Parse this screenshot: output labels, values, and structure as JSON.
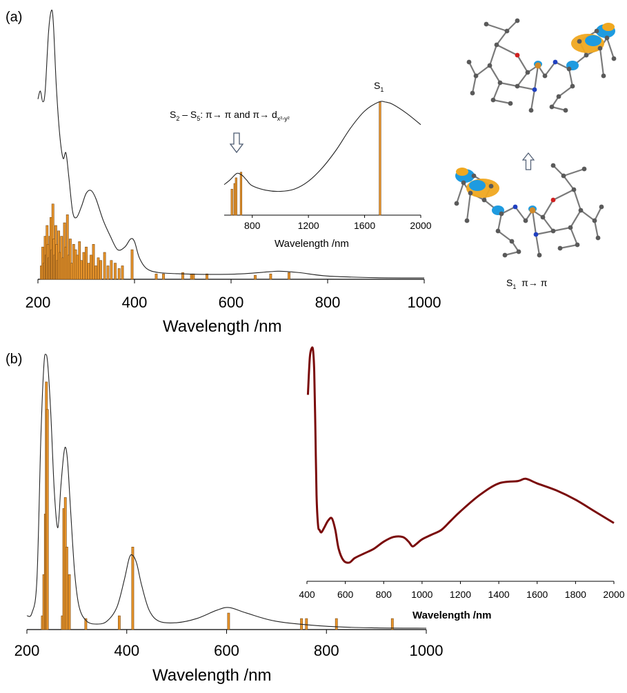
{
  "panels": [
    {
      "label": "(a)"
    },
    {
      "label": "(b)"
    }
  ],
  "annotations": {
    "s1_label": "S",
    "s1_sub": "1",
    "s2s5_label": "S",
    "s2s5_sub1": "2",
    "s2s5_dash": " – S",
    "s2s5_sub2": "5",
    "s2s5_text": ": π→ π and π→ d",
    "s2s5_dsub": "x²-y²",
    "orbital_caption": "S",
    "orbital_caption_sub": "1",
    "orbital_caption_text": "  π→ π"
  },
  "colors": {
    "bar_fill": "#E8942A",
    "bar_stroke": "#7A4A14",
    "simulated_curve": "#222222",
    "experimental_curve": "#7A0A0A",
    "orbital_blue": "#1E9BE0",
    "orbital_orange": "#F0A820",
    "atom_gray": "#5A5A5A"
  },
  "icons": [
    "hollow-down-arrow-icon",
    "hollow-up-arrow-icon",
    "molecule-orbital-image"
  ],
  "chart_data": [
    {
      "id": "a-main",
      "type": "bar",
      "xlabel": "Wavelength /nm",
      "xlim": [
        200,
        1000
      ],
      "xticks": [
        200,
        400,
        600,
        800,
        1000
      ],
      "curve_x": [
        200,
        205,
        210,
        215,
        222,
        228,
        232,
        238,
        245,
        252,
        258,
        264,
        272,
        280,
        290,
        300,
        310,
        320,
        335,
        350,
        365,
        380,
        392,
        400,
        410,
        425,
        450,
        500,
        560,
        620,
        680,
        700,
        740,
        800,
        900,
        1000
      ],
      "curve_y": [
        0.67,
        0.7,
        0.66,
        0.7,
        0.92,
        1.0,
        0.95,
        0.72,
        0.54,
        0.45,
        0.47,
        0.38,
        0.25,
        0.23,
        0.27,
        0.32,
        0.33,
        0.3,
        0.22,
        0.16,
        0.11,
        0.12,
        0.15,
        0.14,
        0.08,
        0.04,
        0.025,
        0.02,
        0.018,
        0.02,
        0.028,
        0.03,
        0.025,
        0.012,
        0.006,
        0.005
      ],
      "bars_x": [
        207,
        210,
        213,
        215,
        217,
        219,
        221,
        223,
        225,
        227,
        229,
        231,
        233,
        235,
        237,
        239,
        241,
        243,
        246,
        249,
        252,
        255,
        258,
        261,
        264,
        267,
        270,
        274,
        278,
        282,
        286,
        290,
        295,
        300,
        305,
        310,
        315,
        320,
        325,
        330,
        338,
        345,
        352,
        360,
        368,
        375,
        395,
        445,
        460,
        500,
        518,
        522,
        550,
        650,
        682,
        720
      ],
      "bars_y": [
        0.05,
        0.12,
        0.06,
        0.16,
        0.09,
        0.2,
        0.13,
        0.08,
        0.16,
        0.23,
        0.11,
        0.28,
        0.15,
        0.09,
        0.2,
        0.13,
        0.07,
        0.18,
        0.1,
        0.16,
        0.08,
        0.21,
        0.12,
        0.24,
        0.09,
        0.15,
        0.06,
        0.13,
        0.11,
        0.09,
        0.14,
        0.07,
        0.1,
        0.12,
        0.06,
        0.09,
        0.13,
        0.05,
        0.08,
        0.07,
        0.1,
        0.05,
        0.07,
        0.06,
        0.04,
        0.05,
        0.11,
        0.02,
        0.02,
        0.025,
        0.02,
        0.02,
        0.02,
        0.015,
        0.02,
        0.025
      ]
    },
    {
      "id": "a-inset",
      "type": "bar",
      "xlabel": "Wavelength /nm",
      "xlim": [
        600,
        2000
      ],
      "xticks": [
        800,
        1200,
        1600,
        2000
      ],
      "curve_x": [
        600,
        640,
        680,
        700,
        730,
        760,
        800,
        900,
        1000,
        1100,
        1200,
        1300,
        1400,
        1500,
        1600,
        1700,
        1750,
        1800,
        1900,
        2000
      ],
      "curve_y": [
        0.27,
        0.31,
        0.36,
        0.37,
        0.35,
        0.31,
        0.26,
        0.22,
        0.21,
        0.23,
        0.3,
        0.42,
        0.58,
        0.77,
        0.92,
        1.0,
        1.0,
        0.98,
        0.9,
        0.8
      ],
      "bars_x": [
        655,
        675,
        685,
        720,
        1710
      ],
      "bars_y": [
        0.23,
        0.28,
        0.33,
        0.38,
        1.0
      ]
    },
    {
      "id": "b-main",
      "type": "bar",
      "xlabel": "Wavelength /nm",
      "xlim": [
        200,
        1000
      ],
      "xticks": [
        200,
        400,
        600,
        800,
        1000
      ],
      "curve_x": [
        200,
        210,
        220,
        228,
        234,
        238,
        242,
        248,
        255,
        262,
        268,
        274,
        278,
        282,
        288,
        296,
        305,
        320,
        340,
        360,
        380,
        395,
        405,
        412,
        420,
        430,
        445,
        465,
        500,
        540,
        580,
        605,
        640,
        700,
        800,
        900,
        1000
      ],
      "curve_y": [
        0.05,
        0.06,
        0.18,
        0.7,
        0.96,
        1.0,
        0.96,
        0.78,
        0.5,
        0.37,
        0.52,
        0.64,
        0.66,
        0.6,
        0.42,
        0.2,
        0.08,
        0.03,
        0.02,
        0.03,
        0.08,
        0.18,
        0.26,
        0.27,
        0.24,
        0.16,
        0.07,
        0.03,
        0.025,
        0.04,
        0.07,
        0.08,
        0.06,
        0.03,
        0.012,
        0.006,
        0.005
      ],
      "bars_x": [
        231,
        234,
        237,
        239,
        241,
        271,
        274,
        277,
        280,
        285,
        318,
        385,
        412,
        604,
        750,
        760,
        820,
        932
      ],
      "bars_y": [
        0.05,
        0.2,
        0.42,
        0.9,
        0.8,
        0.05,
        0.44,
        0.48,
        0.3,
        0.2,
        0.04,
        0.05,
        0.3,
        0.06,
        0.04,
        0.04,
        0.04,
        0.04
      ]
    },
    {
      "id": "b-inset",
      "type": "line",
      "xlabel": "Wavelength /nm",
      "xlim": [
        400,
        2000
      ],
      "xticks": [
        400,
        600,
        800,
        1000,
        1200,
        1400,
        1600,
        1800,
        2000
      ],
      "x": [
        405,
        415,
        425,
        432,
        438,
        444,
        450,
        458,
        466,
        475,
        490,
        510,
        530,
        548,
        565,
        590,
        620,
        650,
        700,
        750,
        800,
        850,
        900,
        930,
        950,
        970,
        1000,
        1050,
        1100,
        1150,
        1200,
        1300,
        1400,
        1500,
        1540,
        1600,
        1700,
        1800,
        1900,
        2000
      ],
      "y": [
        0.8,
        0.96,
        1.0,
        0.99,
        0.9,
        0.65,
        0.37,
        0.24,
        0.22,
        0.21,
        0.23,
        0.26,
        0.27,
        0.22,
        0.14,
        0.09,
        0.08,
        0.1,
        0.12,
        0.14,
        0.17,
        0.19,
        0.19,
        0.17,
        0.15,
        0.16,
        0.18,
        0.2,
        0.22,
        0.26,
        0.3,
        0.37,
        0.42,
        0.43,
        0.44,
        0.42,
        0.39,
        0.35,
        0.3,
        0.25
      ]
    }
  ]
}
